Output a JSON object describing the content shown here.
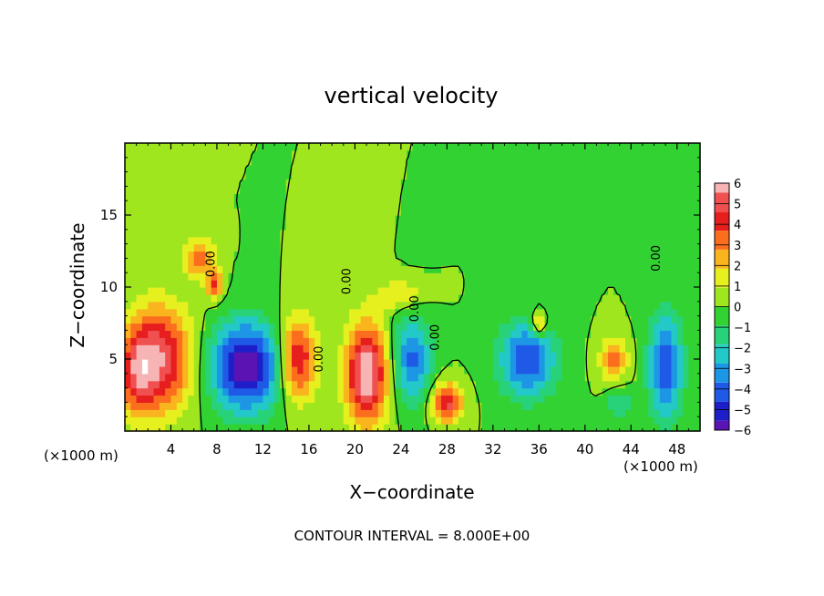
{
  "chart_data": {
    "type": "heatmap",
    "title": "vertical velocity",
    "xlabel": "X−coordinate",
    "ylabel": "Z−coordinate",
    "x_unit_label": "(×1000 m)",
    "footer": "CONTOUR INTERVAL = 8.000E+00",
    "xlim": [
      0,
      50
    ],
    "ylim": [
      0,
      20
    ],
    "x_ticks": [
      "4",
      "8",
      "12",
      "16",
      "20",
      "24",
      "28",
      "32",
      "36",
      "40",
      "44",
      "48"
    ],
    "y_ticks": [
      "5",
      "10",
      "15"
    ],
    "contour_labels": [
      {
        "text": "0.00",
        "x": 7.8,
        "y": 11.6
      },
      {
        "text": "0.00",
        "x": 19.6,
        "y": 10.4
      },
      {
        "text": "0.00",
        "x": 17.2,
        "y": 5.0
      },
      {
        "text": "0.00",
        "x": 25.5,
        "y": 8.5
      },
      {
        "text": "0.00",
        "x": 27.3,
        "y": 6.5
      },
      {
        "text": "0.00",
        "x": 46.5,
        "y": 12.0
      }
    ],
    "colorbar": {
      "ticks": [
        "6",
        "5",
        "4",
        "3",
        "2",
        "1",
        "0",
        "−1",
        "−2",
        "−3",
        "−4",
        "−5",
        "−6"
      ],
      "range": [
        -6,
        6
      ],
      "colors": [
        "#f7b4b4",
        "#f05050",
        "#e61e1e",
        "#fa6e1e",
        "#fab41e",
        "#e6f01e",
        "#a0e61e",
        "#32d232",
        "#28d278",
        "#23c8c8",
        "#1e96e6",
        "#1e5ae6",
        "#1e1ec8",
        "#5a14b4"
      ]
    },
    "features": [
      {
        "x": 3.0,
        "z": 5.0,
        "w": 5.5,
        "h": 3.0,
        "sx": 2.8,
        "sz": 3.6
      },
      {
        "x": 1.0,
        "z": 4.0,
        "w": 3.0,
        "h": 0.3,
        "sx": 1.5,
        "sz": 3.0
      },
      {
        "x": 6.5,
        "z": 12.0,
        "w": 3.5,
        "h": 0.0,
        "sx": 1.3,
        "sz": 1.3
      },
      {
        "x": 7.8,
        "z": 10.2,
        "w": 4.0,
        "h": 0.0,
        "sx": 0.7,
        "sz": 1.0
      },
      {
        "x": 10.5,
        "z": 4.5,
        "w": -6.5,
        "h": -2.8,
        "sx": 3.0,
        "sz": 3.0
      },
      {
        "x": 15.0,
        "z": 5.0,
        "w": 5.0,
        "h": 0.0,
        "sx": 1.6,
        "sz": 2.8
      },
      {
        "x": 21.0,
        "z": 4.0,
        "w": 6.5,
        "h": -2.5,
        "sx": 1.8,
        "sz": 3.5
      },
      {
        "x": 25.0,
        "z": 5.0,
        "w": -4.0,
        "h": 0.0,
        "sx": 1.6,
        "sz": 3.0
      },
      {
        "x": 28.0,
        "z": 2.0,
        "w": 5.0,
        "h": 0.0,
        "sx": 1.3,
        "sz": 1.3
      },
      {
        "x": 35.0,
        "z": 5.0,
        "w": -4.5,
        "h": 0.0,
        "sx": 2.5,
        "sz": 2.6
      },
      {
        "x": 36.0,
        "z": 7.5,
        "w": 3.5,
        "h": 0.0,
        "sx": 0.6,
        "sz": 0.9
      },
      {
        "x": 42.5,
        "z": 5.0,
        "w": 3.0,
        "h": 0.0,
        "sx": 1.2,
        "sz": 1.5
      },
      {
        "x": 47.0,
        "z": 4.5,
        "w": -4.5,
        "h": 3.5,
        "sx": 1.5,
        "sz": 3.5
      },
      {
        "x": 43.0,
        "z": 2.0,
        "w": -2.0,
        "h": 0.0,
        "sx": 1.0,
        "sz": 1.0
      },
      {
        "x": 24.0,
        "z": 9.5,
        "w": 2.0,
        "h": 0.0,
        "sx": 2.0,
        "sz": 1.0
      }
    ]
  }
}
